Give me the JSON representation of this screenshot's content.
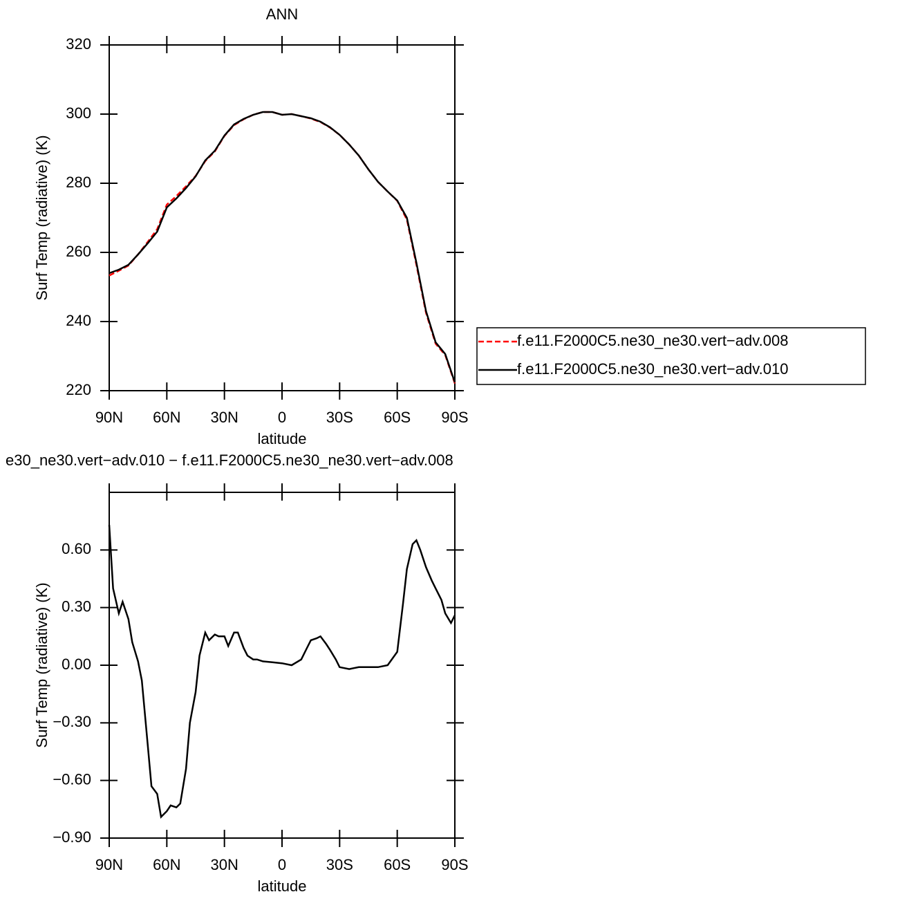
{
  "chart_data": [
    {
      "type": "line",
      "title": "ANN",
      "xlabel": "latitude",
      "ylabel": "Surf Temp (radiative) (K)",
      "x": [
        90,
        85,
        80,
        75,
        70,
        65,
        60,
        55,
        50,
        45,
        40,
        35,
        30,
        25,
        20,
        15,
        10,
        5,
        0,
        -5,
        -10,
        -15,
        -20,
        -25,
        -30,
        -35,
        -40,
        -45,
        -50,
        -55,
        -60,
        -65,
        -70,
        -75,
        -80,
        -85,
        -90
      ],
      "xlim": [
        90,
        -90
      ],
      "xticks": [
        {
          "value": 90,
          "label": "90N"
        },
        {
          "value": 60,
          "label": "60N"
        },
        {
          "value": 30,
          "label": "30N"
        },
        0,
        {
          "value": -30,
          "label": "30S"
        },
        {
          "value": -60,
          "label": "60S"
        },
        {
          "value": -90,
          "label": "90S"
        }
      ],
      "ylim": [
        220,
        320
      ],
      "yticks": [
        220,
        240,
        260,
        280,
        300,
        320
      ],
      "legend": "right",
      "series": [
        {
          "name": "f.e11.F2000C5.ne30_ne30.vert−adv.008",
          "color": "#ff0000",
          "dash": true,
          "values": [
            253.3,
            254.7,
            256.2,
            259.4,
            263.0,
            266.7,
            273.8,
            276.3,
            279.1,
            282.1,
            286.4,
            289.2,
            293.7,
            296.8,
            298.5,
            299.8,
            300.6,
            300.6,
            299.8,
            300.0,
            299.4,
            298.7,
            297.7,
            296.1,
            294.0,
            291.2,
            288.0,
            284.0,
            280.4,
            277.6,
            274.9,
            269.5,
            256.4,
            242.5,
            233.6,
            230.3,
            222.1
          ]
        },
        {
          "name": "f.e11.F2000C5.ne30_ne30.vert−adv.010",
          "color": "#000000",
          "dash": false,
          "values": [
            254.0,
            255.0,
            256.4,
            259.4,
            262.6,
            266.0,
            273.0,
            275.6,
            278.6,
            282.0,
            286.6,
            289.4,
            293.8,
            297.0,
            298.6,
            299.8,
            300.6,
            300.6,
            299.8,
            300.0,
            299.4,
            298.8,
            297.8,
            296.2,
            294.0,
            291.2,
            288.0,
            284.0,
            280.4,
            277.6,
            275.0,
            270.0,
            257.0,
            243.0,
            234.0,
            230.6,
            222.4
          ]
        }
      ]
    },
    {
      "type": "line",
      "title": "e30_ne30.vert−adv.010 − f.e11.F2000C5.ne30_ne30.vert−adv.008",
      "xlabel": "latitude",
      "ylabel": "Surf Temp (radiative) (K)",
      "x": [
        90,
        88,
        85,
        83,
        80,
        78,
        75,
        73,
        70,
        68,
        65,
        63,
        60,
        58,
        55,
        53,
        50,
        48,
        45,
        43,
        40,
        38,
        35,
        33,
        30,
        28,
        25,
        23,
        20,
        18,
        15,
        13,
        10,
        5,
        0,
        -5,
        -10,
        -13,
        -15,
        -18,
        -20,
        -23,
        -25,
        -28,
        -30,
        -35,
        -40,
        -45,
        -50,
        -55,
        -60,
        -63,
        -65,
        -68,
        -70,
        -72,
        -75,
        -78,
        -80,
        -83,
        -85,
        -88,
        -90
      ],
      "xlim": [
        90,
        -90
      ],
      "xticks": [
        {
          "value": 90,
          "label": "90N"
        },
        {
          "value": 60,
          "label": "60N"
        },
        {
          "value": 30,
          "label": "30N"
        },
        0,
        {
          "value": -30,
          "label": "30S"
        },
        {
          "value": -60,
          "label": "60S"
        },
        {
          "value": -90,
          "label": "90S"
        }
      ],
      "ylim": [
        -0.9,
        0.9
      ],
      "yticks": [
        {
          "value": -0.9,
          "label": "−0.90"
        },
        {
          "value": -0.6,
          "label": "−0.60"
        },
        {
          "value": -0.3,
          "label": "−0.30"
        },
        {
          "value": 0,
          "label": "0.00"
        },
        {
          "value": 0.3,
          "label": "0.30"
        },
        {
          "value": 0.6,
          "label": "0.60"
        }
      ],
      "series": [
        {
          "name": null,
          "color": "#000000",
          "dash": false,
          "values": [
            0.73,
            0.4,
            0.27,
            0.33,
            0.24,
            0.12,
            0.02,
            -0.08,
            -0.41,
            -0.63,
            -0.67,
            -0.79,
            -0.76,
            -0.73,
            -0.74,
            -0.72,
            -0.54,
            -0.3,
            -0.14,
            0.05,
            0.17,
            0.13,
            0.16,
            0.15,
            0.15,
            0.1,
            0.17,
            0.17,
            0.09,
            0.05,
            0.03,
            0.03,
            0.02,
            0.015,
            0.01,
            0.0,
            0.03,
            0.09,
            0.13,
            0.14,
            0.15,
            0.11,
            0.08,
            0.03,
            -0.01,
            -0.02,
            -0.01,
            -0.01,
            -0.01,
            0.0,
            0.07,
            0.32,
            0.5,
            0.63,
            0.65,
            0.6,
            0.51,
            0.44,
            0.4,
            0.34,
            0.27,
            0.22,
            0.26
          ]
        }
      ]
    }
  ]
}
